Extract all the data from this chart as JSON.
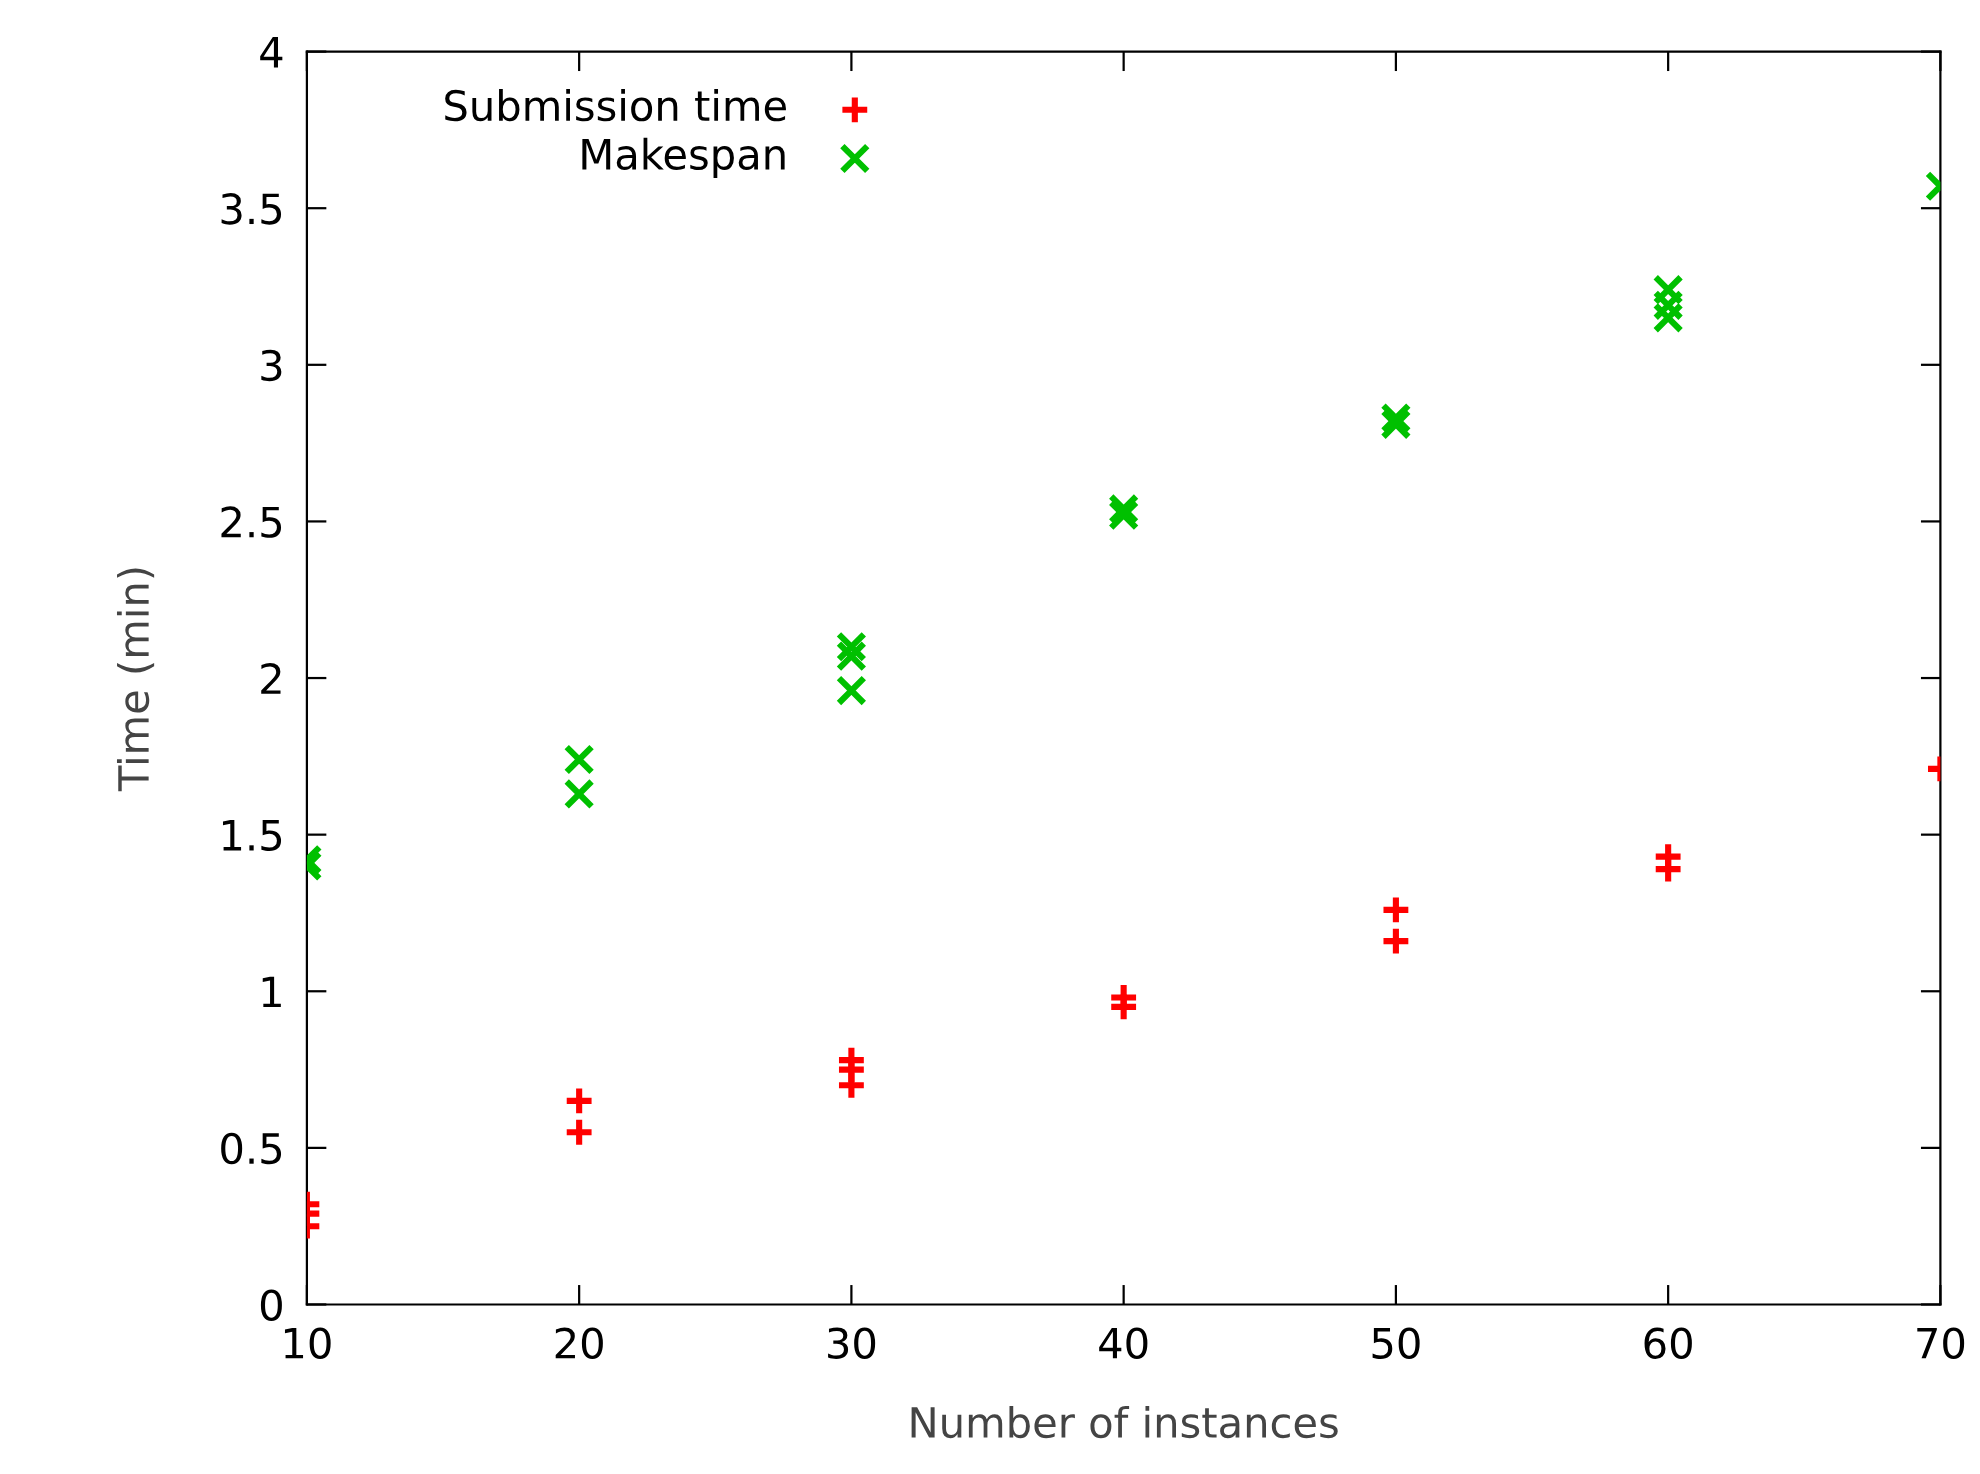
{
  "chart_data": {
    "type": "scatter",
    "xlabel": "Number of instances",
    "ylabel": "Time (min)",
    "xlim": [
      10,
      70
    ],
    "xticks": [
      10,
      20,
      30,
      40,
      50,
      60,
      70
    ],
    "ylim": [
      0,
      4
    ],
    "yticks": [
      0,
      0.5,
      1,
      1.5,
      2,
      2.5,
      3,
      3.5,
      4
    ],
    "grid": false,
    "legend": "top left",
    "series": [
      {
        "name": "Submission time",
        "color": "#ff0000",
        "marker": "plus",
        "x": [
          10,
          10,
          10,
          20,
          20,
          30,
          30,
          30,
          40,
          40,
          50,
          50,
          60,
          60,
          70
        ],
        "values": [
          0.32,
          0.29,
          0.25,
          0.65,
          0.55,
          0.78,
          0.75,
          0.7,
          0.98,
          0.95,
          1.26,
          1.16,
          1.43,
          1.39,
          1.71
        ]
      },
      {
        "name": "Makespan",
        "color": "#00c000",
        "marker": "cross",
        "x": [
          10,
          10,
          20,
          20,
          30,
          30,
          30,
          40,
          40,
          50,
          50,
          60,
          60,
          60,
          70
        ],
        "values": [
          1.42,
          1.4,
          1.74,
          1.63,
          2.1,
          2.07,
          1.96,
          2.54,
          2.52,
          2.83,
          2.81,
          3.24,
          3.19,
          3.15,
          3.57
        ]
      }
    ]
  }
}
